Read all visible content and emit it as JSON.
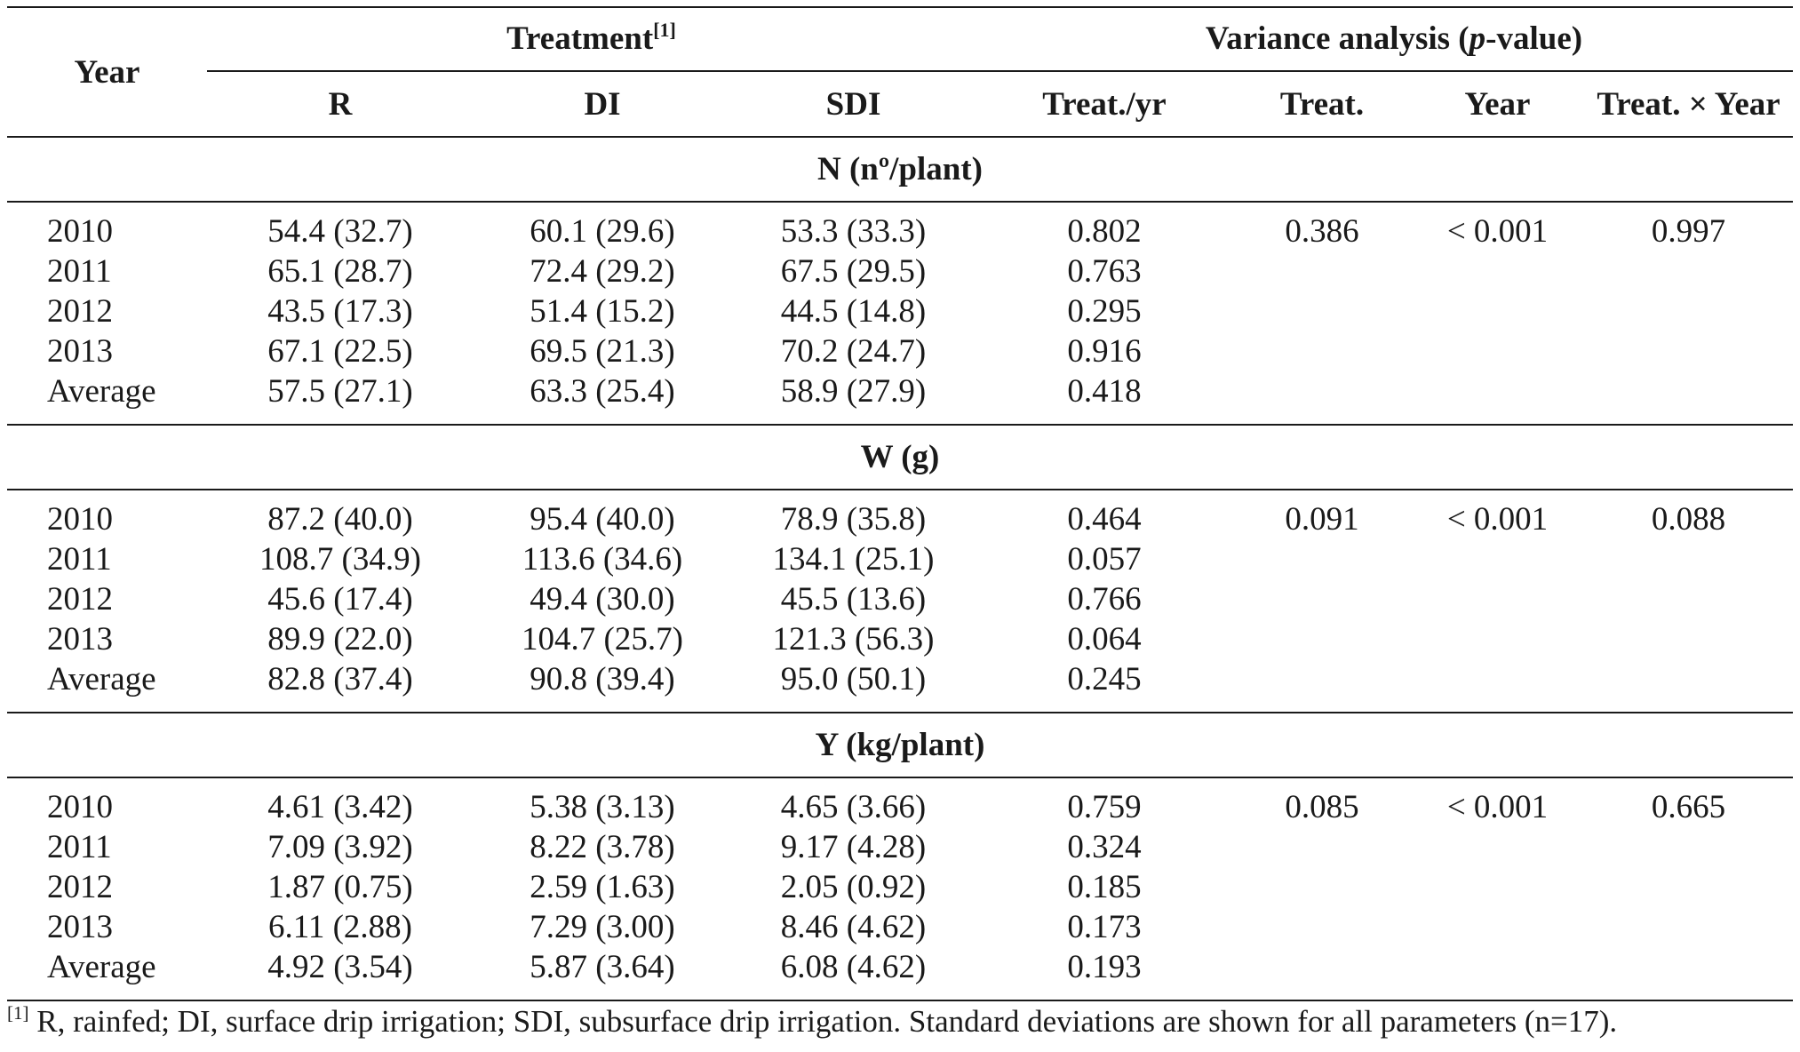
{
  "header": {
    "year": "Year",
    "treatment": "Treatment",
    "treatment_note": "[1]",
    "variance_pre": "Variance analysis (",
    "variance_italic": "p",
    "variance_post": "-value)",
    "cols": [
      "R",
      "DI",
      "SDI",
      "Treat./yr",
      "Treat.",
      "Year",
      "Treat. × Year"
    ]
  },
  "sections": [
    {
      "title": "N (nº/plant)",
      "rows": [
        [
          "2010",
          "54.4 (32.7)",
          "60.1 (29.6)",
          "53.3 (33.3)",
          "0.802",
          "0.386",
          "< 0.001",
          "0.997"
        ],
        [
          "2011",
          "65.1 (28.7)",
          "72.4 (29.2)",
          "67.5 (29.5)",
          "0.763",
          "",
          "",
          ""
        ],
        [
          "2012",
          "43.5 (17.3)",
          "51.4 (15.2)",
          "44.5 (14.8)",
          "0.295",
          "",
          "",
          ""
        ],
        [
          "2013",
          "67.1 (22.5)",
          "69.5 (21.3)",
          "70.2 (24.7)",
          "0.916",
          "",
          "",
          ""
        ],
        [
          "Average",
          "57.5 (27.1)",
          "63.3 (25.4)",
          "58.9 (27.9)",
          "0.418",
          "",
          "",
          ""
        ]
      ]
    },
    {
      "title": "W (g)",
      "rows": [
        [
          "2010",
          "87.2 (40.0)",
          "95.4 (40.0)",
          "78.9 (35.8)",
          "0.464",
          "0.091",
          "< 0.001",
          "0.088"
        ],
        [
          "2011",
          "108.7 (34.9)",
          "113.6 (34.6)",
          "134.1 (25.1)",
          "0.057",
          "",
          "",
          ""
        ],
        [
          "2012",
          "45.6 (17.4)",
          "49.4 (30.0)",
          "45.5 (13.6)",
          "0.766",
          "",
          "",
          ""
        ],
        [
          "2013",
          "89.9 (22.0)",
          "104.7 (25.7)",
          "121.3 (56.3)",
          "0.064",
          "",
          "",
          ""
        ],
        [
          "Average",
          "82.8 (37.4)",
          "90.8 (39.4)",
          "95.0 (50.1)",
          "0.245",
          "",
          "",
          ""
        ]
      ]
    },
    {
      "title": "Y (kg/plant)",
      "rows": [
        [
          "2010",
          "4.61 (3.42)",
          "5.38 (3.13)",
          "4.65 (3.66)",
          "0.759",
          "0.085",
          "< 0.001",
          "0.665"
        ],
        [
          "2011",
          "7.09 (3.92)",
          "8.22 (3.78)",
          "9.17 (4.28)",
          "0.324",
          "",
          "",
          ""
        ],
        [
          "2012",
          "1.87 (0.75)",
          "2.59 (1.63)",
          "2.05 (0.92)",
          "0.185",
          "",
          "",
          ""
        ],
        [
          "2013",
          "6.11 (2.88)",
          "7.29 (3.00)",
          "8.46 (4.62)",
          "0.173",
          "",
          "",
          ""
        ],
        [
          "Average",
          "4.92 (3.54)",
          "5.87 (3.64)",
          "6.08 (4.62)",
          "0.193",
          "",
          "",
          ""
        ]
      ]
    }
  ],
  "footnote": {
    "marker": "[1]",
    "text": " R, rainfed; DI, surface drip irrigation; SDI, subsurface drip irrigation. Standard deviations are shown for all parameters (n=17)."
  }
}
